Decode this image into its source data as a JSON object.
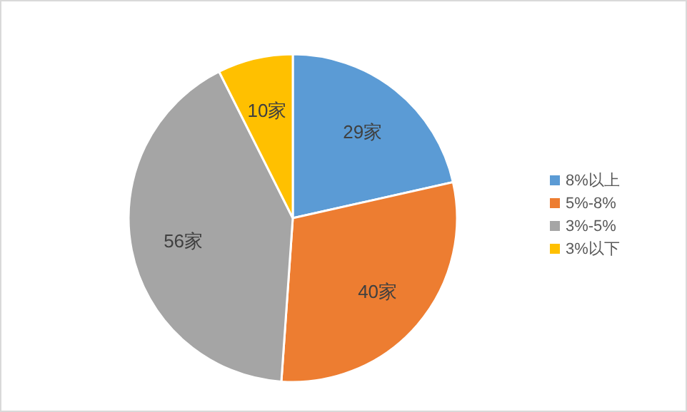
{
  "chart_data": {
    "type": "pie",
    "categories": [
      "8%以上",
      "5%-8%",
      "3%-5%",
      "3%以下"
    ],
    "values": [
      29,
      40,
      56,
      10
    ],
    "colors": [
      "#5b9bd5",
      "#ed7d31",
      "#a5a5a5",
      "#ffc000"
    ],
    "value_labels": [
      "29家",
      "40家",
      "56家",
      "10家"
    ],
    "legend": "right"
  }
}
